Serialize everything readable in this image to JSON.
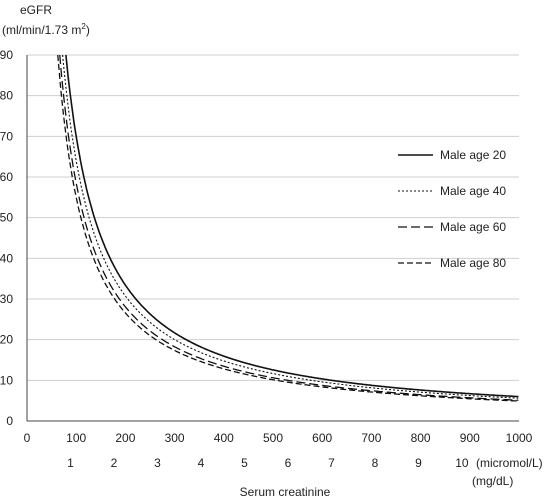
{
  "chart_data": {
    "type": "line",
    "ylabel": "eGFR",
    "ylabel_units": "(ml/min/1.73 m²)",
    "ylabel_units_main": "(ml/min/1.73 m",
    "ylabel_units_sup": "2",
    "ylabel_units_end": ")",
    "xlabel": "Serum creatinine",
    "x_units_primary": "(micromol/L)",
    "x_units_secondary": "(mg/dL)",
    "xlim": [
      0,
      1000
    ],
    "ylim": [
      0,
      90
    ],
    "xticks": [
      0,
      100,
      200,
      300,
      400,
      500,
      600,
      700,
      800,
      900,
      1000
    ],
    "yticks": [
      0,
      10,
      20,
      30,
      40,
      50,
      60,
      70,
      80,
      90
    ],
    "secondary_xticks": [
      1,
      2,
      3,
      4,
      5,
      6,
      7,
      8,
      9,
      10
    ],
    "grid": "horizontal",
    "legend_position": "right",
    "series": [
      {
        "name": "Male age 20",
        "style": "solid",
        "x": [
          100,
          150,
          200,
          300,
          400,
          500,
          600,
          700,
          800,
          900,
          1000
        ],
        "y": [
          70,
          46,
          33.8,
          22.1,
          16.4,
          13.1,
          10.8,
          9.1,
          7.9,
          6.9,
          6.0
        ]
      },
      {
        "name": "Male age 40",
        "style": "dotted",
        "x": [
          100,
          150,
          200,
          300,
          400,
          500,
          600,
          700,
          800,
          900,
          1000
        ],
        "y": [
          64,
          42,
          30.9,
          20.1,
          15.0,
          11.8,
          9.7,
          8.2,
          7.1,
          6.3,
          5.6
        ]
      },
      {
        "name": "Male age 60",
        "style": "long-dash",
        "x": [
          100,
          150,
          200,
          300,
          400,
          500,
          600,
          700,
          800,
          900,
          1000
        ],
        "y": [
          58.5,
          38.4,
          28.3,
          18.5,
          13.6,
          10.7,
          8.9,
          7.6,
          6.6,
          5.8,
          5.1
        ]
      },
      {
        "name": "Male age 80",
        "style": "medium-dash",
        "x": [
          100,
          150,
          200,
          300,
          400,
          500,
          600,
          700,
          800,
          900,
          1000
        ],
        "y": [
          55,
          36,
          26.5,
          17.4,
          12.9,
          10.3,
          8.5,
          7.2,
          6.3,
          5.5,
          4.9
        ]
      }
    ]
  }
}
